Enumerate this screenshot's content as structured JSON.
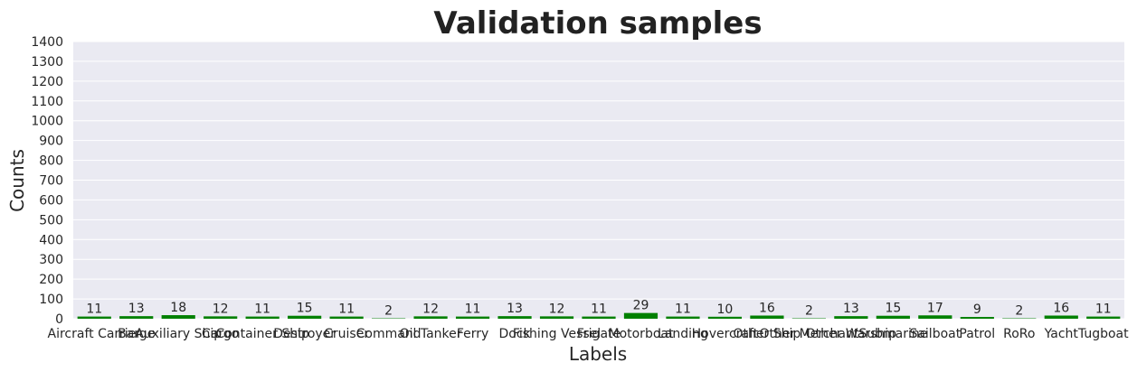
{
  "chart_data": {
    "type": "bar",
    "title": "Validation samples",
    "xlabel": "Labels",
    "ylabel": "Counts",
    "ylim": [
      0,
      1400
    ],
    "yticks": [
      0,
      100,
      200,
      300,
      400,
      500,
      600,
      700,
      800,
      900,
      1000,
      1100,
      1200,
      1300,
      1400
    ],
    "grid": true,
    "bar_color": "#008000",
    "background_color": "#eaeaf2",
    "categories": [
      "Aircraft Carrier",
      "Barge",
      "Auxiliary Ship",
      "Cargo",
      "Container Ship",
      "Destroyer",
      "Cruiser",
      "Command",
      "Oil Tanker",
      "Ferry",
      "Dock",
      "Fishing Vessel",
      "Frigate",
      "Motorboat",
      "Landing",
      "Hovercraft",
      "Other Ship",
      "Other Merchant",
      "Other Warship",
      "Submarine",
      "Sailboat",
      "Patrol",
      "RoRo",
      "Yacht",
      "Tugboat"
    ],
    "values": [
      11,
      13,
      18,
      12,
      11,
      15,
      11,
      2,
      12,
      11,
      13,
      12,
      11,
      29,
      11,
      10,
      16,
      2,
      13,
      15,
      17,
      9,
      2,
      16,
      11
    ]
  }
}
